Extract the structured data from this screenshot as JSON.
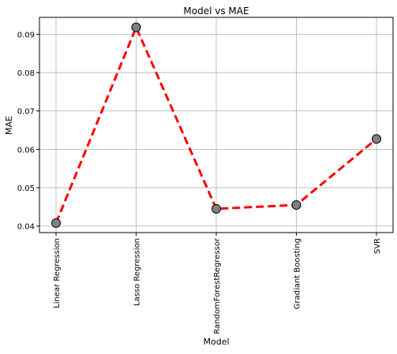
{
  "chart_data": {
    "type": "line",
    "title": "Model vs MAE",
    "xlabel": "Model",
    "ylabel": "MAE",
    "categories": [
      "Linear Regression",
      "Lasso Regression",
      "RandomForestRegressor",
      "Gradiant Boosting",
      "SVR"
    ],
    "series": [
      {
        "values": [
          0.0408,
          0.0918,
          0.0445,
          0.0455,
          0.0627
        ]
      }
    ],
    "yticks": [
      "0.04",
      "0.05",
      "0.06",
      "0.07",
      "0.08",
      "0.09"
    ],
    "ylim": [
      0.0383,
      0.0944
    ],
    "grid": true,
    "colors": {
      "line": "#ff0000",
      "marker_fill": "#808080",
      "marker_edge": "#000000"
    }
  }
}
